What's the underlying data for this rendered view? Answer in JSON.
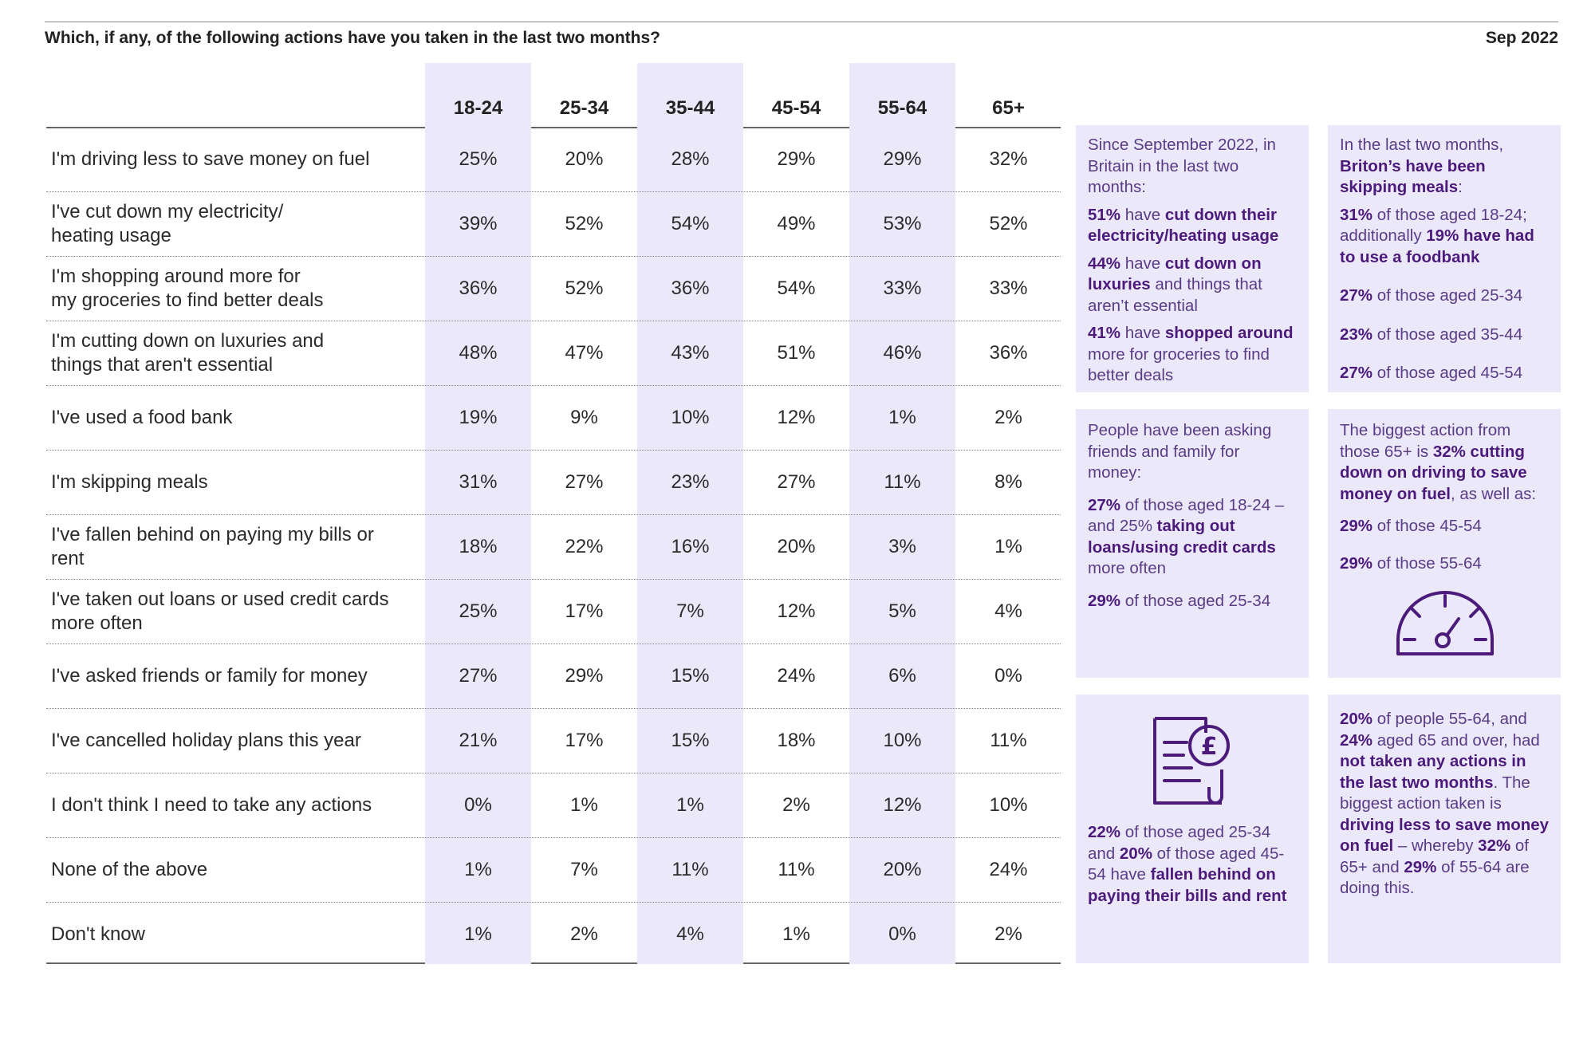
{
  "header": {
    "question": "Which, if any, of the following actions have you taken in the last two months?",
    "date": "Sep 2022"
  },
  "chart_data": {
    "type": "table",
    "title": "Which, if any, of the following actions have you taken in the last two months?",
    "columns": [
      "18-24",
      "25-34",
      "35-44",
      "45-54",
      "55-64",
      "65+"
    ],
    "rows": [
      {
        "label": "I'm driving less to save money on fuel",
        "values": [
          "25%",
          "20%",
          "28%",
          "29%",
          "29%",
          "32%"
        ]
      },
      {
        "label": "I've cut down my electricity/\nheating usage",
        "values": [
          "39%",
          "52%",
          "54%",
          "49%",
          "53%",
          "52%"
        ]
      },
      {
        "label": "I'm shopping around more for\nmy groceries to find better deals",
        "values": [
          "36%",
          "52%",
          "36%",
          "54%",
          "33%",
          "33%"
        ]
      },
      {
        "label": "I'm cutting down on luxuries and\nthings that aren't essential",
        "values": [
          "48%",
          "47%",
          "43%",
          "51%",
          "46%",
          "36%"
        ]
      },
      {
        "label": "I've used a food bank",
        "values": [
          "19%",
          "9%",
          "10%",
          "12%",
          "1%",
          "2%"
        ]
      },
      {
        "label": "I'm skipping meals",
        "values": [
          "31%",
          "27%",
          "23%",
          "27%",
          "11%",
          "8%"
        ]
      },
      {
        "label": "I've fallen behind on paying my bills or\nrent",
        "values": [
          "18%",
          "22%",
          "16%",
          "20%",
          "3%",
          "1%"
        ]
      },
      {
        "label": "I've taken out loans or used credit cards\nmore often",
        "values": [
          "25%",
          "17%",
          "7%",
          "12%",
          "5%",
          "4%"
        ]
      },
      {
        "label": "I've asked friends or family for money",
        "values": [
          "27%",
          "29%",
          "15%",
          "24%",
          "6%",
          "0%"
        ]
      },
      {
        "label": "I've cancelled holiday plans this year",
        "values": [
          "21%",
          "17%",
          "15%",
          "18%",
          "10%",
          "11%"
        ]
      },
      {
        "label": "I don't think I need to take any actions",
        "values": [
          "0%",
          "1%",
          "1%",
          "2%",
          "12%",
          "10%"
        ]
      },
      {
        "label": "None of the above",
        "values": [
          "1%",
          "7%",
          "11%",
          "11%",
          "20%",
          "24%"
        ]
      },
      {
        "label": "Don't know",
        "values": [
          "1%",
          "2%",
          "4%",
          "1%",
          "0%",
          "2%"
        ]
      }
    ],
    "colors": {
      "band": "#ebe9f9",
      "accent": "#4b1a7a",
      "text": "#5a3b86"
    }
  },
  "boxes": {
    "b1": {
      "intro": "Since September 2022, in Britain in the last two months:",
      "i1_pct": "51%",
      "i1_mid": " have ",
      "i1_bold": "cut down their electricity/heating usage",
      "i2_pct": "44%",
      "i2_mid": " have ",
      "i2_bold": "cut down on luxuries",
      "i2_end": " and things that aren’t essential",
      "i3_pct": "41%",
      "i3_mid": " have ",
      "i3_bold": "shopped around",
      "i3_end": " more for groceries to find better deals"
    },
    "b2": {
      "intro_a": "In the last two months, ",
      "intro_bold": "Briton’s have been skipping meals",
      "intro_end": ":",
      "i1_pct": "31%",
      "i1_mid": " of those aged 18-24; additionally ",
      "i1_bold": "19% have had to use a foodbank",
      "i2_pct": "27%",
      "i2_mid": " of those aged 25-34",
      "i3_pct": "23%",
      "i3_mid": " of those aged 35-44",
      "i4_pct": "27%",
      "i4_mid": " of those aged 45-54"
    },
    "b3": {
      "intro": "People have been asking friends and family for money:",
      "i1_pct": "27%",
      "i1_mid": " of those aged 18-24 – and 25% ",
      "i1_bold": "taking out loans/using credit cards",
      "i1_end": " more often",
      "i2_pct": "29%",
      "i2_mid": " of those aged 25-34"
    },
    "b4": {
      "intro_a": "The biggest action from those 65+ is ",
      "intro_bold": "32% cutting down on driving to save money on fuel",
      "intro_end": ", as well as:",
      "i1_pct": "29%",
      "i1_mid": " of those 45-54",
      "i2_pct": "29%",
      "i2_mid": " of those 55-64",
      "icon": "speedometer-icon"
    },
    "b5": {
      "icon": "pound-bill-icon",
      "pct1": "22%",
      "t1": " of those aged 25-34 and ",
      "pct2": "20%",
      "t2": " of those aged 45-54 have ",
      "bold": "fallen behind on paying their bills and rent"
    },
    "b6": {
      "p1": "20%",
      "t1": " of people 55-64, and ",
      "p2": "24%",
      "t2": " aged 65 and over, had ",
      "b1": "not taken any actions in the last two months",
      "t3": ". The biggest action taken is ",
      "b2": "driving less to save money on fuel",
      "t4": " – whereby ",
      "p3": "32%",
      "t5": " of 65+ and ",
      "p4": "29%",
      "t6": " of 55-64 are doing this."
    }
  }
}
